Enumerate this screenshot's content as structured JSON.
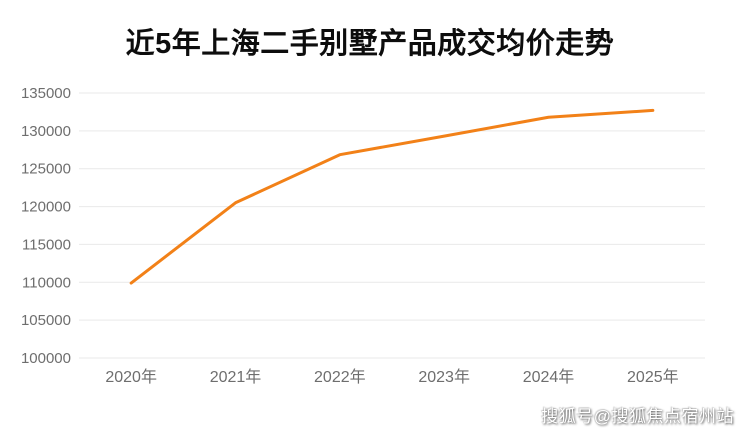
{
  "chart": {
    "title": "近5年上海二手别墅产品成交均价走势"
  },
  "watermark": {
    "text": "搜狐号@搜狐焦点宿州站"
  },
  "chart_data": {
    "type": "line",
    "title": "近5年上海二手别墅产品成交均价走势",
    "categories": [
      "2020年",
      "2021年",
      "2022年",
      "2023年",
      "2024年",
      "2025年"
    ],
    "values": [
      109900,
      120500,
      126850,
      129300,
      131800,
      132700
    ],
    "xlabel": "",
    "ylabel": "",
    "ylim": [
      100000,
      135000
    ],
    "y_ticks": [
      100000,
      105000,
      110000,
      115000,
      120000,
      125000,
      130000,
      135000
    ],
    "grid": true,
    "legend": false,
    "line_color": "#f28118",
    "grid_color": "#e9e9e9",
    "axis_label_color": "#6e6e6e",
    "title_color": "#0d0d0d",
    "background_color": "#ffffff"
  }
}
